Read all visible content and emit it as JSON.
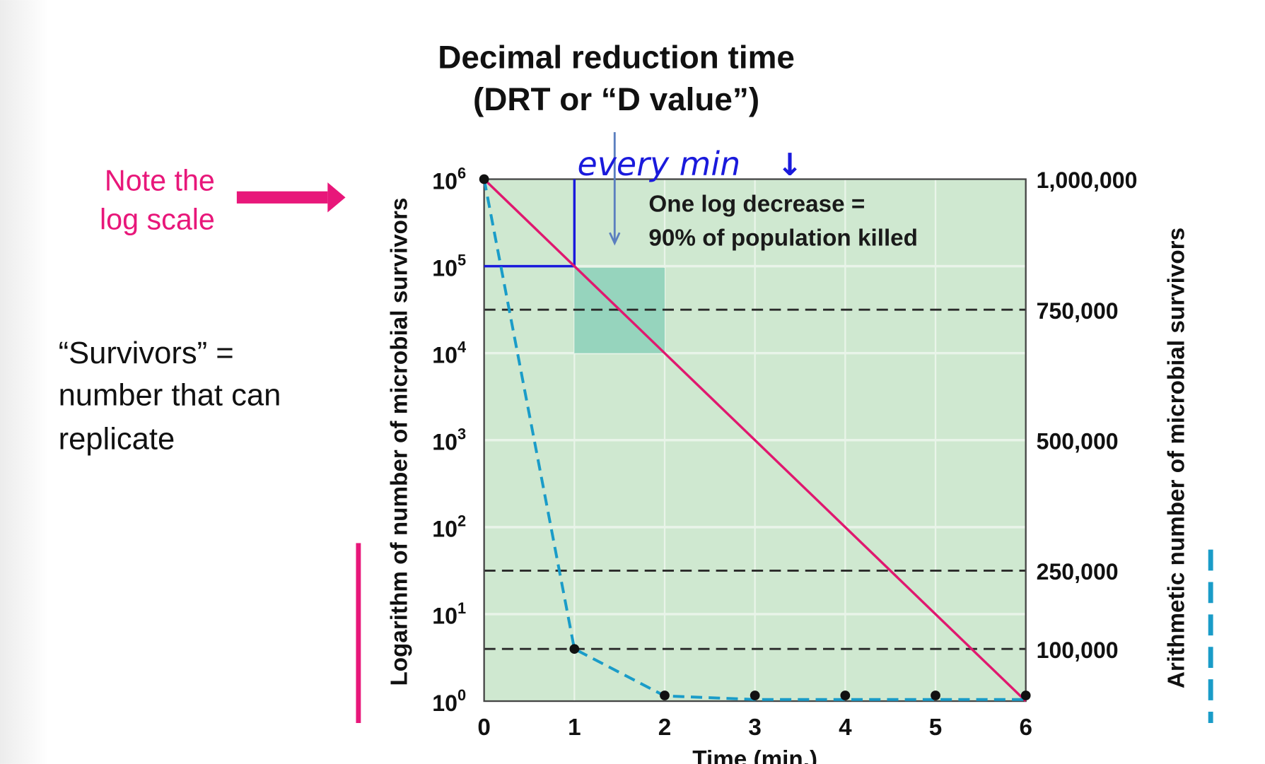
{
  "title": {
    "line1": "Decimal reduction time",
    "line2": "(DRT or “D value”)"
  },
  "annotations": {
    "note_line1": "Note the",
    "note_line2": "log scale",
    "survivors_line1": "“Survivors” =",
    "survivors_line2": "number that can",
    "survivors_line3": "replicate",
    "handwritten": "every min",
    "handwritten_arrow": "↓",
    "box_line1": "One log decrease =",
    "box_line2": "90% of population killed"
  },
  "colors": {
    "plot_bg": "#cfe8d0",
    "grid": "#e9f4e9",
    "log_line": "#e0186f",
    "arith_line": "#1a9cc8",
    "highlight_square": "#96d4bd",
    "annotation_blue": "#1a1adc",
    "note_pink": "#e8177a",
    "arrow_steel": "#5b7fbf"
  },
  "chart_data": {
    "type": "line",
    "xlabel": "Time (min.)",
    "ylabel_left": "Logarithm of number of microbial survivors",
    "ylabel_right": "Arithmetic number of microbial survivors",
    "x_ticks": [
      "0",
      "1",
      "2",
      "3",
      "4",
      "5",
      "6"
    ],
    "xlim": [
      0,
      6
    ],
    "y_left": {
      "scale": "log",
      "ylim": [
        1,
        1000000
      ],
      "ticks": [
        {
          "base": "10",
          "exp": "0"
        },
        {
          "base": "10",
          "exp": "1"
        },
        {
          "base": "10",
          "exp": "2"
        },
        {
          "base": "10",
          "exp": "3"
        },
        {
          "base": "10",
          "exp": "4"
        },
        {
          "base": "10",
          "exp": "5"
        },
        {
          "base": "10",
          "exp": "6"
        }
      ]
    },
    "y_right": {
      "scale": "linear",
      "ylim": [
        0,
        1000000
      ],
      "ticks": [
        {
          "value": 1000000,
          "label": "1,000,000"
        },
        {
          "value": 750000,
          "label": "750,000"
        },
        {
          "value": 500000,
          "label": "500,000"
        },
        {
          "value": 250000,
          "label": "250,000"
        },
        {
          "value": 100000,
          "label": "100,000"
        }
      ],
      "dashed_reference_lines": [
        750000,
        250000,
        100000
      ]
    },
    "grid": true,
    "series": [
      {
        "axis": "left-log",
        "style": "solid",
        "x": [
          0,
          1,
          2,
          3,
          4,
          5,
          6
        ],
        "y": [
          1000000,
          100000,
          10000,
          1000,
          100,
          10,
          1
        ]
      },
      {
        "axis": "right-arithmetic",
        "style": "dashed",
        "markers": true,
        "x": [
          0,
          1,
          2,
          3,
          4,
          5,
          6
        ],
        "y": [
          1000000,
          100000,
          10000,
          1000,
          100,
          10,
          1
        ]
      }
    ],
    "highlight": {
      "x": [
        1,
        2
      ],
      "y": [
        10000,
        100000
      ]
    },
    "drt_bracket": {
      "x": [
        0,
        1
      ],
      "y": [
        100000,
        1000000
      ]
    }
  }
}
